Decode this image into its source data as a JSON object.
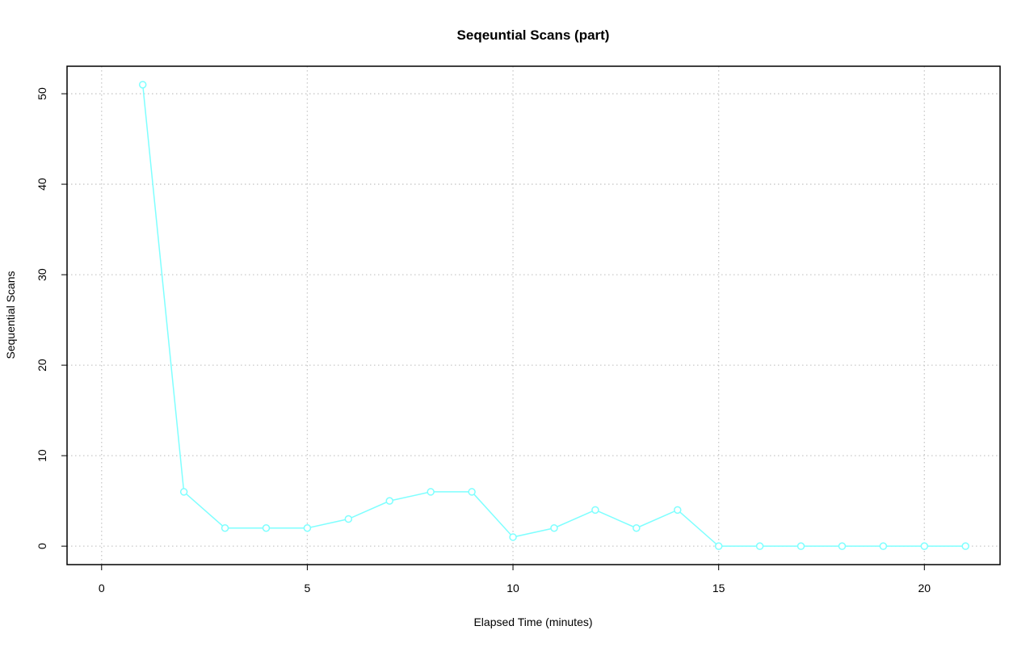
{
  "chart_data": {
    "type": "line",
    "title": "Seqeuntial Scans (part)",
    "x_label": "Elapsed Time (minutes)",
    "y_label": "Sequential Scans",
    "x": [
      1,
      2,
      3,
      4,
      5,
      6,
      7,
      8,
      9,
      10,
      11,
      12,
      13,
      14,
      15,
      16,
      17,
      18,
      19,
      20,
      21
    ],
    "series": [
      {
        "name": "Sequential Scans",
        "color": "#7fffff",
        "values": [
          51,
          6,
          2,
          2,
          2,
          3,
          5,
          6,
          6,
          1,
          2,
          4,
          2,
          4,
          0,
          0,
          0,
          0,
          0,
          0,
          0
        ]
      }
    ],
    "xlim": [
      -0.84,
      21.84
    ],
    "xticks": [
      0,
      5,
      10,
      15,
      20
    ],
    "ylim": [
      -2.04,
      53.04
    ],
    "yticks": [
      0,
      10,
      20,
      30,
      40,
      50
    ],
    "grid": true
  }
}
